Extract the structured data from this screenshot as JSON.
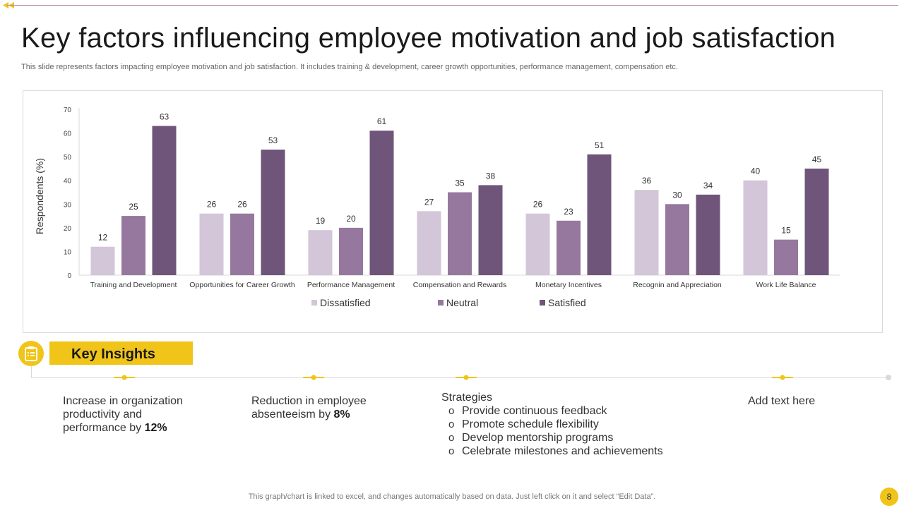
{
  "page": {
    "title": "Key factors influencing employee motivation and job satisfaction",
    "subtitle": "This slide represents factors impacting employee motivation and job satisfaction. It includes training & development, career growth opportunities, performance management, compensation etc.",
    "footer_note": "This graph/chart is linked to excel,  and changes automatically based on data. Just left click on it and select “Edit Data”.",
    "page_number": "8"
  },
  "colors": {
    "accent": "#f0c419",
    "dissatisfied": "#d3c6d9",
    "neutral": "#96789e",
    "satisfied": "#6f5579"
  },
  "chart_data": {
    "type": "bar",
    "categories": [
      "Training and  Development",
      "Opportunities for Career Growth",
      "Performance Management",
      "Compensation and Rewards",
      "Monetary Incentives",
      "Recognin and Appreciation",
      "Work Life Balance"
    ],
    "series": [
      {
        "name": "Dissatisfied",
        "values": [
          12,
          26,
          19,
          27,
          26,
          36,
          40
        ]
      },
      {
        "name": "Neutral",
        "values": [
          25,
          26,
          20,
          35,
          23,
          30,
          15
        ]
      },
      {
        "name": "Satisfied",
        "values": [
          63,
          53,
          61,
          38,
          51,
          34,
          45
        ]
      }
    ],
    "ylabel": "Respondents  (%)",
    "ylim": [
      0,
      70
    ],
    "yticks": [
      0,
      10,
      20,
      30,
      40,
      50,
      60,
      70
    ],
    "legend_position": "bottom",
    "grid": false
  },
  "insights": {
    "label": "Key Insights",
    "item1": {
      "text": "Increase  in organization productivity and performance by ",
      "highlight": "12%"
    },
    "item2": {
      "text": "Reduction in employee absenteeism by ",
      "highlight": "8%"
    },
    "item3": {
      "heading": "Strategies",
      "points": [
        "Provide continuous feedback",
        "Promote schedule flexibility",
        "Develop mentorship programs",
        "Celebrate milestones and achievements"
      ]
    },
    "item4": {
      "text": "Add text here"
    }
  }
}
